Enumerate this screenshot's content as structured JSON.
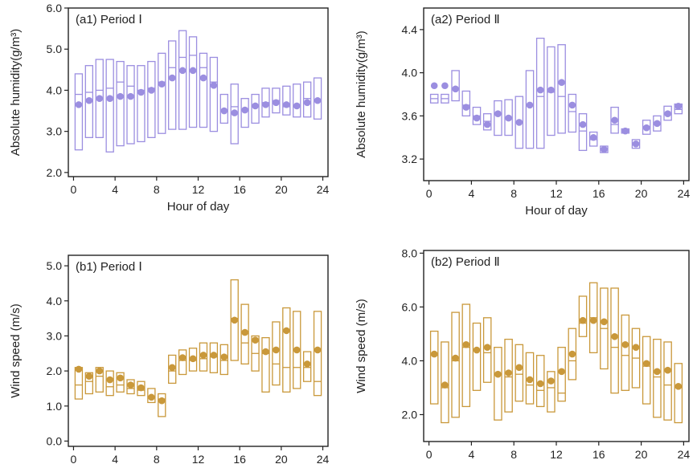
{
  "chart_data": [
    {
      "type": "box",
      "panel_label": "(a1) Period Ⅰ",
      "xlabel": "Hour of day",
      "ylabel": "Absolute humidity(g/m³)",
      "xlim": [
        -0.5,
        24.5
      ],
      "ylim": [
        1.9,
        6.0
      ],
      "xticks": [
        0,
        4,
        8,
        12,
        16,
        20,
        24
      ],
      "yticks": [
        2.0,
        3.0,
        4.0,
        5.0,
        6.0
      ],
      "ytick_labels": [
        "2.0",
        "3.0",
        "4.0",
        "5.0",
        "6.0"
      ],
      "color": "#9B8EE0",
      "hours": [
        0.5,
        1.5,
        2.5,
        3.5,
        4.5,
        5.5,
        6.5,
        7.5,
        8.5,
        9.5,
        10.5,
        11.5,
        12.5,
        13.5,
        14.5,
        15.5,
        16.5,
        17.5,
        18.5,
        19.5,
        20.5,
        21.5,
        22.5,
        23.5
      ],
      "q1": [
        2.55,
        2.85,
        2.85,
        2.5,
        2.65,
        2.7,
        2.75,
        2.85,
        2.95,
        3.05,
        3.05,
        3.1,
        3.1,
        3.0,
        3.2,
        2.7,
        3.1,
        3.2,
        3.35,
        3.45,
        3.4,
        3.35,
        3.35,
        3.3
      ],
      "median": [
        3.9,
        3.95,
        4.0,
        4.05,
        4.2,
        4.1,
        4.0,
        4.05,
        4.2,
        4.55,
        4.8,
        4.85,
        4.55,
        4.2,
        3.5,
        3.6,
        3.5,
        3.6,
        3.7,
        3.75,
        3.6,
        3.6,
        3.8,
        3.75
      ],
      "q3": [
        4.4,
        4.6,
        4.75,
        4.75,
        4.7,
        4.6,
        4.6,
        4.7,
        4.9,
        5.2,
        5.45,
        5.3,
        4.9,
        4.8,
        3.9,
        4.15,
        3.8,
        3.9,
        4.05,
        4.05,
        4.1,
        4.15,
        4.2,
        4.3
      ],
      "mean": [
        3.65,
        3.75,
        3.8,
        3.8,
        3.85,
        3.85,
        3.95,
        4.0,
        4.15,
        4.3,
        4.48,
        4.48,
        4.3,
        4.12,
        3.5,
        3.45,
        3.52,
        3.62,
        3.65,
        3.7,
        3.65,
        3.62,
        3.7,
        3.75
      ]
    },
    {
      "type": "box",
      "panel_label": "(a2) Period Ⅱ",
      "xlabel": "Hour of day",
      "ylabel": "Absolute humidity(g/m³)",
      "xlim": [
        -0.5,
        24.5
      ],
      "ylim": [
        3.0,
        4.6
      ],
      "xticks": [
        0,
        4,
        8,
        12,
        16,
        20,
        24
      ],
      "yticks": [
        3.2,
        3.6,
        4.0,
        4.4
      ],
      "ytick_labels": [
        "3.2",
        "3.6",
        "4.0",
        "4.4"
      ],
      "color": "#9B8EE0",
      "hours": [
        0.5,
        1.5,
        2.5,
        3.5,
        4.5,
        5.5,
        6.5,
        7.5,
        8.5,
        9.5,
        10.5,
        11.5,
        12.5,
        13.5,
        14.5,
        15.5,
        16.5,
        17.5,
        18.5,
        19.5,
        20.5,
        21.5,
        22.5,
        23.5
      ],
      "q1": [
        3.72,
        3.72,
        3.74,
        3.6,
        3.52,
        3.47,
        3.42,
        3.42,
        3.3,
        3.3,
        3.3,
        3.42,
        3.44,
        3.45,
        3.28,
        3.32,
        3.26,
        3.44,
        3.44,
        3.3,
        3.43,
        3.46,
        3.56,
        3.62
      ],
      "median": [
        3.76,
        3.76,
        3.86,
        3.7,
        3.6,
        3.55,
        3.62,
        3.58,
        3.54,
        3.7,
        3.78,
        3.82,
        3.78,
        3.64,
        3.46,
        3.38,
        3.3,
        3.52,
        3.46,
        3.35,
        3.5,
        3.52,
        3.62,
        3.66
      ],
      "q3": [
        3.8,
        3.8,
        4.02,
        3.83,
        3.68,
        3.62,
        3.74,
        3.75,
        3.78,
        4.02,
        4.32,
        4.24,
        4.26,
        3.8,
        3.62,
        3.45,
        3.32,
        3.68,
        3.48,
        3.38,
        3.56,
        3.6,
        3.69,
        3.71
      ],
      "mean": [
        3.88,
        3.88,
        3.85,
        3.68,
        3.58,
        3.52,
        3.62,
        3.58,
        3.54,
        3.7,
        3.84,
        3.84,
        3.91,
        3.7,
        3.52,
        3.4,
        3.29,
        3.56,
        3.46,
        3.34,
        3.49,
        3.53,
        3.62,
        3.69
      ]
    },
    {
      "type": "box",
      "panel_label": "(b1) Period Ⅰ",
      "xlabel": "Hour of day",
      "ylabel": "Wind speed  (m/s)",
      "xlim": [
        -0.5,
        24.5
      ],
      "ylim": [
        -0.15,
        5.3
      ],
      "xticks": [
        0,
        4,
        8,
        12,
        16,
        20,
        24
      ],
      "yticks": [
        0.0,
        1.0,
        2.0,
        3.0,
        4.0,
        5.0
      ],
      "ytick_labels": [
        "0.0",
        "1.0",
        "2.0",
        "3.0",
        "4.0",
        "5.0"
      ],
      "color": "#C9983A",
      "hours": [
        0.5,
        1.5,
        2.5,
        3.5,
        4.5,
        5.5,
        6.5,
        7.5,
        8.5,
        9.5,
        10.5,
        11.5,
        12.5,
        13.5,
        14.5,
        15.5,
        16.5,
        17.5,
        18.5,
        19.5,
        20.5,
        21.5,
        22.5,
        23.5
      ],
      "q1": [
        1.2,
        1.35,
        1.4,
        1.3,
        1.4,
        1.35,
        1.3,
        1.1,
        0.7,
        1.65,
        1.9,
        2.0,
        2.0,
        1.95,
        1.9,
        2.3,
        2.2,
        2.0,
        1.4,
        1.6,
        1.4,
        1.5,
        1.7,
        1.3
      ],
      "median": [
        1.6,
        1.7,
        1.85,
        1.55,
        1.6,
        1.5,
        1.45,
        1.25,
        1.2,
        2.0,
        2.3,
        2.3,
        2.35,
        2.4,
        2.3,
        3.5,
        2.8,
        2.5,
        2.5,
        2.2,
        2.1,
        2.1,
        2.1,
        1.7
      ],
      "q3": [
        2.1,
        1.95,
        2.1,
        2.0,
        1.95,
        1.75,
        1.7,
        1.5,
        1.35,
        2.45,
        2.6,
        2.65,
        2.8,
        2.8,
        2.75,
        4.6,
        3.9,
        3.0,
        2.95,
        3.4,
        3.8,
        3.7,
        2.55,
        3.7
      ],
      "mean": [
        2.05,
        1.85,
        2.0,
        1.75,
        1.8,
        1.6,
        1.52,
        1.25,
        1.15,
        2.1,
        2.38,
        2.35,
        2.45,
        2.45,
        2.4,
        3.45,
        3.1,
        2.88,
        2.55,
        2.6,
        3.15,
        2.6,
        2.2,
        2.6
      ]
    },
    {
      "type": "box",
      "panel_label": "(b2) Period Ⅱ",
      "xlabel": "Hour of day",
      "ylabel": "Wind speed  (m/s)",
      "xlim": [
        -0.5,
        24.5
      ],
      "ylim": [
        1.0,
        8.1
      ],
      "xticks": [
        0,
        4,
        8,
        12,
        16,
        20,
        24
      ],
      "yticks": [
        2.0,
        4.0,
        6.0,
        8.0
      ],
      "ytick_labels": [
        "2.0",
        "4.0",
        "6.0",
        "8.0"
      ],
      "color": "#C9983A",
      "hours": [
        0.5,
        1.5,
        2.5,
        3.5,
        4.5,
        5.5,
        6.5,
        7.5,
        8.5,
        9.5,
        10.5,
        11.5,
        12.5,
        13.5,
        14.5,
        15.5,
        16.5,
        17.5,
        18.5,
        19.5,
        20.5,
        21.5,
        22.5,
        23.5
      ],
      "q1": [
        2.4,
        1.7,
        1.9,
        2.3,
        2.9,
        3.2,
        1.8,
        2.1,
        2.5,
        2.4,
        2.3,
        2.1,
        2.5,
        3.3,
        4.9,
        4.3,
        3.7,
        2.8,
        2.9,
        3.0,
        2.4,
        1.9,
        1.8,
        1.7
      ],
      "median": [
        4.2,
        3.0,
        4.0,
        4.5,
        4.4,
        4.3,
        3.5,
        3.4,
        3.5,
        3.1,
        2.9,
        3.0,
        2.8,
        4.0,
        5.4,
        5.6,
        5.2,
        4.5,
        4.2,
        4.1,
        3.8,
        3.4,
        3.1,
        3.0
      ],
      "q3": [
        5.1,
        4.7,
        5.8,
        6.1,
        5.4,
        5.6,
        4.5,
        4.8,
        4.6,
        4.3,
        4.2,
        3.6,
        4.5,
        5.2,
        6.4,
        6.9,
        6.7,
        6.7,
        5.7,
        5.2,
        4.9,
        4.8,
        4.7,
        3.9
      ],
      "mean": [
        4.25,
        3.1,
        4.1,
        4.6,
        4.4,
        4.5,
        3.5,
        3.55,
        3.75,
        3.3,
        3.15,
        3.25,
        3.6,
        4.25,
        5.5,
        5.5,
        5.45,
        4.9,
        4.6,
        4.5,
        3.9,
        3.6,
        3.65,
        3.05
      ]
    }
  ]
}
